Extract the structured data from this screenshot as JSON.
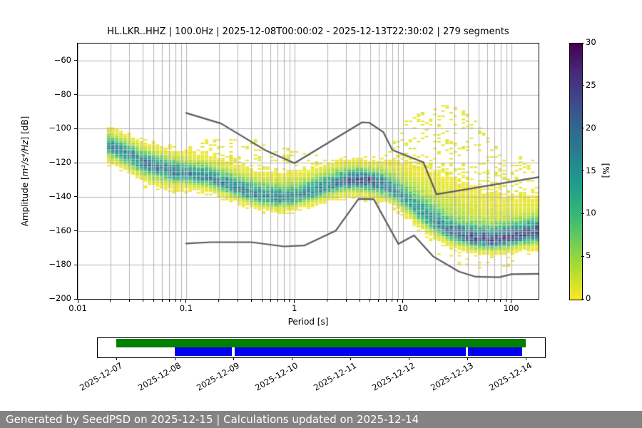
{
  "header": {
    "title": "HL.LKR..HHZ | 100.0Hz | 2025-12-08T00:00:02 - 2025-12-13T22:30:02 | 279 segments"
  },
  "chart_data": {
    "type": "heatmap",
    "title": "HL.LKR..HHZ | 100.0Hz | 2025-12-08T00:00:02 - 2025-12-13T22:30:02 | 279 segments",
    "xlabel": "Period [s]",
    "ylabel_prefix": "Amplitude [",
    "ylabel_math": "m²/s⁴/Hz",
    "ylabel_suffix": "] [dB]",
    "x_scale": "log",
    "x_range_s": [
      0.01,
      179
    ],
    "x_ticks": [
      {
        "v": 0.01,
        "label": "0.01"
      },
      {
        "v": 0.1,
        "label": "0.1"
      },
      {
        "v": 1,
        "label": "1"
      },
      {
        "v": 10,
        "label": "10"
      },
      {
        "v": 100,
        "label": "100"
      }
    ],
    "y_range_db": [
      -200,
      -50
    ],
    "y_ticks": [
      {
        "v": -60,
        "label": "−60"
      },
      {
        "v": -80,
        "label": "−80"
      },
      {
        "v": -100,
        "label": "−100"
      },
      {
        "v": -120,
        "label": "−120"
      },
      {
        "v": -140,
        "label": "−140"
      },
      {
        "v": -160,
        "label": "−160"
      },
      {
        "v": -180,
        "label": "−180"
      },
      {
        "v": -200,
        "label": "−200"
      }
    ],
    "grid": true,
    "grid_color": "#b2b2b2",
    "colorbar": {
      "label": "[%]",
      "min": 0,
      "max": 30,
      "ticks": [
        {
          "v": 0,
          "label": "0"
        },
        {
          "v": 5,
          "label": "5"
        },
        {
          "v": 10,
          "label": "10"
        },
        {
          "v": 15,
          "label": "15"
        },
        {
          "v": 20,
          "label": "20"
        },
        {
          "v": 25,
          "label": "25"
        },
        {
          "v": 30,
          "label": "30"
        }
      ],
      "colormap": "viridis_r",
      "viridis_stops": [
        "#440154",
        "#482878",
        "#3e4989",
        "#31688e",
        "#26828e",
        "#1f9e89",
        "#35b779",
        "#6ece58",
        "#b5de2b",
        "#fde725"
      ]
    },
    "noise_models": {
      "color": "#5c5c5c",
      "nhnm": [
        [
          0.1,
          -90.8
        ],
        [
          0.21,
          -97.0
        ],
        [
          0.55,
          -113.0
        ],
        [
          1.0,
          -120.3
        ],
        [
          4.2,
          -96.3
        ],
        [
          4.9,
          -96.5
        ],
        [
          6.6,
          -102.0
        ],
        [
          8.0,
          -112.5
        ],
        [
          15.5,
          -119.8
        ],
        [
          20.5,
          -138.6
        ],
        [
          179,
          -128.5
        ]
      ],
      "nlnm": [
        [
          0.1,
          -167.5
        ],
        [
          0.17,
          -166.7
        ],
        [
          0.4,
          -166.7
        ],
        [
          0.8,
          -169.2
        ],
        [
          1.24,
          -168.6
        ],
        [
          2.4,
          -160.0
        ],
        [
          3.9,
          -141.3
        ],
        [
          5.4,
          -141.5
        ],
        [
          9.1,
          -167.7
        ],
        [
          12.7,
          -162.7
        ],
        [
          19,
          -175.0
        ],
        [
          33,
          -184.0
        ],
        [
          47,
          -187.0
        ],
        [
          78,
          -187.3
        ],
        [
          101,
          -185.5
        ],
        [
          179,
          -185.3
        ]
      ]
    },
    "histogram": {
      "l_start": -1.733,
      "l_end": 2.253,
      "col_step_decades": 0.037628,
      "db_bin": 1,
      "max_percent": 30,
      "mode_curve": [
        [
          0.0185,
          -110.5
        ],
        [
          0.025,
          -114
        ],
        [
          0.04,
          -121
        ],
        [
          0.05,
          -122.5
        ],
        [
          0.07,
          -125.5
        ],
        [
          0.1,
          -127
        ],
        [
          0.15,
          -129
        ],
        [
          0.22,
          -133
        ],
        [
          0.32,
          -137
        ],
        [
          0.45,
          -140
        ],
        [
          0.65,
          -141.5
        ],
        [
          0.9,
          -141
        ],
        [
          1.2,
          -139
        ],
        [
          1.7,
          -135.5
        ],
        [
          2.5,
          -132
        ],
        [
          3.5,
          -130.5
        ],
        [
          4.7,
          -131
        ],
        [
          6,
          -133
        ],
        [
          7.5,
          -136
        ],
        [
          9.5,
          -141
        ],
        [
          12,
          -146.5
        ],
        [
          15,
          -151.5
        ],
        [
          19,
          -156
        ],
        [
          25,
          -160.5
        ],
        [
          33,
          -163.5
        ],
        [
          45,
          -165.5
        ],
        [
          62,
          -166
        ],
        [
          85,
          -164.8
        ],
        [
          115,
          -163.2
        ],
        [
          150,
          -162
        ],
        [
          179,
          -161
        ]
      ],
      "peak_percent": [
        [
          0.0185,
          14
        ],
        [
          0.05,
          17
        ],
        [
          0.1,
          16
        ],
        [
          0.22,
          15
        ],
        [
          0.45,
          15
        ],
        [
          1,
          14
        ],
        [
          2.2,
          16
        ],
        [
          4.7,
          22
        ],
        [
          7.9,
          14
        ],
        [
          12.6,
          11
        ],
        [
          20,
          13
        ],
        [
          31.6,
          17
        ],
        [
          50,
          20
        ],
        [
          79,
          21
        ],
        [
          126,
          20
        ],
        [
          179,
          19
        ]
      ],
      "sigma_up": [
        [
          0.0185,
          4
        ],
        [
          0.05,
          4.2
        ],
        [
          0.1,
          4
        ],
        [
          0.22,
          4.5
        ],
        [
          0.45,
          5
        ],
        [
          1,
          5
        ],
        [
          2.2,
          4.5
        ],
        [
          4.7,
          4
        ],
        [
          7.9,
          5
        ],
        [
          12.6,
          6
        ],
        [
          20,
          5.5
        ],
        [
          31.6,
          5
        ],
        [
          50,
          5
        ],
        [
          79,
          5
        ],
        [
          126,
          5
        ],
        [
          179,
          5
        ]
      ],
      "sigma_down": [
        [
          0.0185,
          3.5
        ],
        [
          0.05,
          4
        ],
        [
          0.1,
          3
        ],
        [
          0.22,
          2.8
        ],
        [
          0.45,
          2.6
        ],
        [
          1,
          2.6
        ],
        [
          2.2,
          3
        ],
        [
          4.7,
          3.5
        ],
        [
          7.9,
          3
        ],
        [
          12.6,
          3
        ],
        [
          20,
          2.8
        ],
        [
          31.6,
          2.6
        ],
        [
          50,
          2.6
        ],
        [
          79,
          2.8
        ],
        [
          126,
          3
        ],
        [
          179,
          3.2
        ]
      ],
      "pedestal": [
        [
          0.0185,
          1.5
        ],
        [
          0.05,
          2
        ],
        [
          0.1,
          2
        ],
        [
          0.22,
          2.5
        ],
        [
          0.45,
          2.5
        ],
        [
          1,
          2
        ],
        [
          2.2,
          2
        ],
        [
          4.7,
          2
        ],
        [
          7.9,
          3
        ],
        [
          12.6,
          4
        ],
        [
          20,
          4.5
        ],
        [
          31.6,
          4.5
        ],
        [
          50,
          4
        ],
        [
          79,
          3.5
        ],
        [
          126,
          3.5
        ],
        [
          179,
          3.5
        ]
      ],
      "pedestal_sigma": [
        [
          0.0185,
          6
        ],
        [
          0.05,
          7
        ],
        [
          0.1,
          7
        ],
        [
          0.22,
          8
        ],
        [
          0.45,
          8
        ],
        [
          1,
          8
        ],
        [
          2.2,
          7
        ],
        [
          4.7,
          6
        ],
        [
          7.9,
          10
        ],
        [
          12.6,
          14
        ],
        [
          20,
          16
        ],
        [
          31.6,
          16
        ],
        [
          50,
          15
        ],
        [
          79,
          13
        ],
        [
          126,
          12
        ],
        [
          179,
          11
        ]
      ],
      "outlier_cloud": {
        "center_period": 22,
        "peak_db": -87,
        "curvature": 85,
        "range_periods": [
          7.1,
          179
        ],
        "base_prob": 0.3
      },
      "mid_outliers": {
        "center_period": 0.25,
        "peak_db": -106.5,
        "curvature": 16,
        "range_periods": [
          0.07,
          1.6
        ],
        "base_prob": 0.17
      },
      "below_speckle": {
        "range_periods": [
          20,
          100
        ],
        "offset_db": [
          2,
          9
        ],
        "prob": 0.12
      },
      "right_dashes": {
        "range_periods": [
          56,
          179
        ],
        "db_range": [
          -132,
          -117
        ],
        "prob": 0.18
      }
    }
  },
  "timeline": {
    "domain_days": [
      -0.33,
      7.32
    ],
    "ticks": [
      {
        "label": "2025-12-07",
        "day": 0
      },
      {
        "label": "2025-12-08",
        "day": 1
      },
      {
        "label": "2025-12-09",
        "day": 2
      },
      {
        "label": "2025-12-10",
        "day": 3
      },
      {
        "label": "2025-12-11",
        "day": 4
      },
      {
        "label": "2025-12-12",
        "day": 5
      },
      {
        "label": "2025-12-13",
        "day": 6
      },
      {
        "label": "2025-12-14",
        "day": 7
      }
    ],
    "green_bar_days": [
      0,
      7
    ],
    "green_color": "#008000",
    "blue_bar_days": [
      1,
      6.94
    ],
    "blue_color": "#0000ee",
    "blue_gaps_days": [
      [
        1.98,
        2.02
      ],
      [
        5.97,
        6.01
      ]
    ]
  },
  "footer": {
    "text": "Generated by SeedPSD on 2025-12-15 | Calculations updated on 2025-12-14",
    "bg": "#838383"
  }
}
